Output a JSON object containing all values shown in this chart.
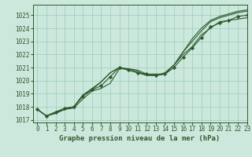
{
  "title": "Graphe pression niveau de la mer (hPa)",
  "bg_color": "#cce8dd",
  "grid_color": "#99ccbb",
  "line_color": "#2d5a2d",
  "xlim": [
    -0.5,
    23
  ],
  "ylim": [
    1016.8,
    1025.8
  ],
  "yticks": [
    1017,
    1018,
    1019,
    1020,
    1021,
    1022,
    1023,
    1024,
    1025
  ],
  "xticks": [
    0,
    1,
    2,
    3,
    4,
    5,
    6,
    7,
    8,
    9,
    10,
    11,
    12,
    13,
    14,
    15,
    16,
    17,
    18,
    19,
    20,
    21,
    22,
    23
  ],
  "xlabel_combined": "0 1 2 3 4 5 6 7 8 9 10111213141516171819202122 23",
  "series": [
    [
      1017.8,
      1017.3,
      1017.5,
      1017.8,
      1017.9,
      1018.6,
      1019.2,
      1019.4,
      1019.8,
      1020.9,
      1020.9,
      1020.8,
      1020.5,
      1020.5,
      1020.5,
      1021.2,
      1022.0,
      1022.6,
      1023.5,
      1024.0,
      1024.5,
      1024.6,
      1024.7,
      1024.8
    ],
    [
      1017.8,
      1017.3,
      1017.6,
      1017.9,
      1018.0,
      1018.8,
      1019.3,
      1019.6,
      1020.3,
      1021.0,
      1020.8,
      1020.6,
      1020.5,
      1020.4,
      1020.5,
      1021.0,
      1021.8,
      1022.5,
      1023.3,
      1024.1,
      1024.4,
      1024.6,
      1024.9,
      1025.0
    ],
    [
      1017.8,
      1017.3,
      1017.5,
      1017.8,
      1018.0,
      1018.9,
      1019.3,
      1019.9,
      1020.6,
      1021.0,
      1020.8,
      1020.6,
      1020.4,
      1020.4,
      1020.5,
      1021.2,
      1022.2,
      1023.0,
      1023.8,
      1024.5,
      1024.8,
      1025.0,
      1025.2,
      1025.3
    ],
    [
      1017.8,
      1017.3,
      1017.6,
      1017.8,
      1018.0,
      1018.9,
      1019.4,
      1019.9,
      1020.6,
      1021.0,
      1020.9,
      1020.7,
      1020.4,
      1020.4,
      1020.6,
      1021.2,
      1022.2,
      1023.2,
      1024.0,
      1024.6,
      1024.9,
      1025.1,
      1025.3,
      1025.4
    ]
  ],
  "marker_series_idx": 1,
  "marker": "D",
  "marker_size": 2.2,
  "linewidth": 0.8,
  "tick_fontsize": 5.5,
  "xlabel_fontsize": 6.5
}
